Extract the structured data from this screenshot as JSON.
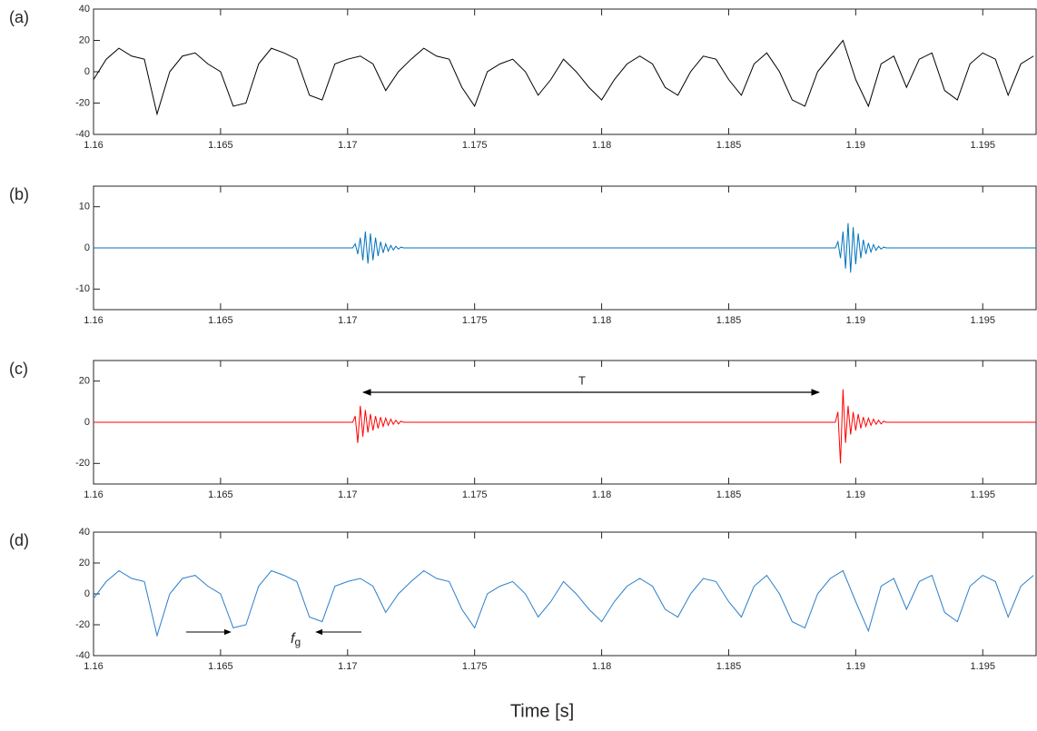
{
  "chart_data": [
    {
      "type": "line",
      "panel_label": "(a)",
      "xlim": [
        1.16,
        1.1971
      ],
      "ylim": [
        -40,
        40
      ],
      "xticks": [
        1.16,
        1.165,
        1.17,
        1.175,
        1.18,
        1.185,
        1.19,
        1.195
      ],
      "yticks": [
        -40,
        -20,
        0,
        20,
        40
      ],
      "grid": false,
      "x": [
        1.16,
        1.1605,
        1.161,
        1.1615,
        1.162,
        1.1625,
        1.163,
        1.1635,
        1.164,
        1.1645,
        1.165,
        1.1655,
        1.166,
        1.1665,
        1.167,
        1.1675,
        1.168,
        1.1685,
        1.169,
        1.1695,
        1.17,
        1.1705,
        1.171,
        1.1715,
        1.172,
        1.1725,
        1.173,
        1.1735,
        1.174,
        1.1745,
        1.175,
        1.1755,
        1.176,
        1.1765,
        1.177,
        1.1775,
        1.178,
        1.1785,
        1.179,
        1.1795,
        1.18,
        1.1805,
        1.181,
        1.1815,
        1.182,
        1.1825,
        1.183,
        1.1835,
        1.184,
        1.1845,
        1.185,
        1.1855,
        1.186,
        1.1865,
        1.187,
        1.1875,
        1.188,
        1.1885,
        1.189,
        1.1895,
        1.19,
        1.1905,
        1.191,
        1.1915,
        1.192,
        1.1925,
        1.193,
        1.1935,
        1.194,
        1.1945,
        1.195,
        1.1955,
        1.196,
        1.1965,
        1.197
      ],
      "series": [
        {
          "color": "#000000",
          "values": [
            -5,
            8,
            15,
            10,
            8,
            -27,
            0,
            10,
            12,
            5,
            0,
            -22,
            -20,
            5,
            15,
            12,
            8,
            -15,
            -18,
            5,
            8,
            10,
            5,
            -12,
            0,
            8,
            15,
            10,
            8,
            -10,
            -22,
            0,
            5,
            8,
            0,
            -15,
            -5,
            8,
            0,
            -10,
            -18,
            -5,
            5,
            10,
            5,
            -10,
            -15,
            0,
            10,
            8,
            -5,
            -15,
            5,
            12,
            0,
            -18,
            -22,
            0,
            10,
            20,
            -5,
            -22,
            5,
            10,
            -10,
            8,
            12,
            -12,
            -18,
            5,
            12,
            8,
            -15,
            5,
            10
          ]
        }
      ]
    },
    {
      "type": "line",
      "panel_label": "(b)",
      "xlim": [
        1.16,
        1.1971
      ],
      "ylim": [
        -15,
        15
      ],
      "xticks": [
        1.16,
        1.165,
        1.17,
        1.175,
        1.18,
        1.185,
        1.19,
        1.195
      ],
      "yticks": [
        -10,
        0,
        10
      ],
      "grid": false,
      "x": [
        1.16,
        1.165,
        1.17,
        1.1702,
        1.1703,
        1.1704,
        1.1705,
        1.1706,
        1.1707,
        1.1708,
        1.1709,
        1.171,
        1.1711,
        1.1712,
        1.1713,
        1.1714,
        1.1715,
        1.1716,
        1.1717,
        1.1718,
        1.1719,
        1.172,
        1.1721,
        1.1722,
        1.175,
        1.18,
        1.185,
        1.1892,
        1.1893,
        1.1894,
        1.1895,
        1.1896,
        1.1897,
        1.1898,
        1.1899,
        1.19,
        1.1901,
        1.1902,
        1.1903,
        1.1904,
        1.1905,
        1.1906,
        1.1907,
        1.1908,
        1.1909,
        1.191,
        1.1911,
        1.1912,
        1.195,
        1.1971
      ],
      "series": [
        {
          "color": "#0072bd",
          "values": [
            0,
            0,
            0,
            0,
            1,
            -1.5,
            2.5,
            -3,
            4,
            -3.8,
            3.5,
            -3,
            2.5,
            -2,
            1.5,
            -1.2,
            1,
            -0.8,
            0.6,
            -0.5,
            0.4,
            -0.3,
            0.2,
            0,
            0,
            0,
            0,
            0,
            1.5,
            -2.5,
            4,
            -5,
            6,
            -6,
            5,
            -4,
            3.5,
            -2.5,
            2,
            -1.5,
            1.2,
            -1,
            0.8,
            -0.6,
            0.4,
            -0.3,
            0.2,
            0,
            0,
            0
          ]
        }
      ]
    },
    {
      "type": "line",
      "panel_label": "(c)",
      "xlim": [
        1.16,
        1.1971
      ],
      "ylim": [
        -30,
        30
      ],
      "xticks": [
        1.16,
        1.165,
        1.17,
        1.175,
        1.18,
        1.185,
        1.19,
        1.195
      ],
      "yticks": [
        -20,
        0,
        20
      ],
      "grid": false,
      "annotation": "T",
      "x": [
        1.16,
        1.165,
        1.17,
        1.1702,
        1.1703,
        1.1704,
        1.1705,
        1.1706,
        1.1707,
        1.1708,
        1.1709,
        1.171,
        1.1711,
        1.1712,
        1.1713,
        1.1714,
        1.1715,
        1.1716,
        1.1717,
        1.1718,
        1.1719,
        1.172,
        1.1721,
        1.1722,
        1.175,
        1.18,
        1.185,
        1.1892,
        1.1893,
        1.1894,
        1.1895,
        1.1896,
        1.1897,
        1.1898,
        1.1899,
        1.19,
        1.1901,
        1.1902,
        1.1903,
        1.1904,
        1.1905,
        1.1906,
        1.1907,
        1.1908,
        1.1909,
        1.191,
        1.1911,
        1.1912,
        1.195,
        1.1971
      ],
      "series": [
        {
          "color": "#ff0000",
          "values": [
            0,
            0,
            0,
            0,
            3,
            -10,
            8,
            -7,
            6,
            -5,
            4,
            -4,
            3,
            -3,
            2.5,
            -2,
            2,
            -1.5,
            1.5,
            -1,
            1,
            -0.8,
            0.5,
            0,
            0,
            0,
            0,
            0,
            5,
            -20,
            16,
            -10,
            8,
            -6,
            5,
            -4,
            4,
            -3,
            2.5,
            -2,
            2,
            -1.5,
            1.5,
            -1,
            1,
            -0.8,
            0.5,
            0,
            0,
            0
          ]
        }
      ]
    },
    {
      "type": "line",
      "panel_label": "(d)",
      "xlim": [
        1.16,
        1.1971
      ],
      "ylim": [
        -40,
        40
      ],
      "xticks": [
        1.16,
        1.165,
        1.17,
        1.175,
        1.18,
        1.185,
        1.19,
        1.195
      ],
      "yticks": [
        -40,
        -20,
        0,
        20,
        40
      ],
      "grid": false,
      "annotation": "f",
      "annotation_sub": "g",
      "xlabel": "Time [s]",
      "x": [
        1.16,
        1.1605,
        1.161,
        1.1615,
        1.162,
        1.1625,
        1.163,
        1.1635,
        1.164,
        1.1645,
        1.165,
        1.1655,
        1.166,
        1.1665,
        1.167,
        1.1675,
        1.168,
        1.1685,
        1.169,
        1.1695,
        1.17,
        1.1705,
        1.171,
        1.1715,
        1.172,
        1.1725,
        1.173,
        1.1735,
        1.174,
        1.1745,
        1.175,
        1.1755,
        1.176,
        1.1765,
        1.177,
        1.1775,
        1.178,
        1.1785,
        1.179,
        1.1795,
        1.18,
        1.1805,
        1.181,
        1.1815,
        1.182,
        1.1825,
        1.183,
        1.1835,
        1.184,
        1.1845,
        1.185,
        1.1855,
        1.186,
        1.1865,
        1.187,
        1.1875,
        1.188,
        1.1885,
        1.189,
        1.1895,
        1.19,
        1.1905,
        1.191,
        1.1915,
        1.192,
        1.1925,
        1.193,
        1.1935,
        1.194,
        1.1945,
        1.195,
        1.1955,
        1.196,
        1.1965,
        1.197
      ],
      "series": [
        {
          "color": "#2a7fc9",
          "values": [
            -3,
            8,
            15,
            10,
            8,
            -27,
            0,
            10,
            12,
            5,
            0,
            -22,
            -20,
            5,
            15,
            12,
            8,
            -15,
            -18,
            5,
            8,
            10,
            5,
            -12,
            0,
            8,
            15,
            10,
            8,
            -10,
            -22,
            0,
            5,
            8,
            0,
            -15,
            -5,
            8,
            0,
            -10,
            -18,
            -5,
            5,
            10,
            5,
            -10,
            -15,
            0,
            10,
            8,
            -5,
            -15,
            5,
            12,
            0,
            -18,
            -22,
            0,
            10,
            15,
            -5,
            -24,
            5,
            10,
            -10,
            8,
            12,
            -12,
            -18,
            5,
            12,
            8,
            -15,
            5,
            12
          ]
        }
      ]
    }
  ]
}
